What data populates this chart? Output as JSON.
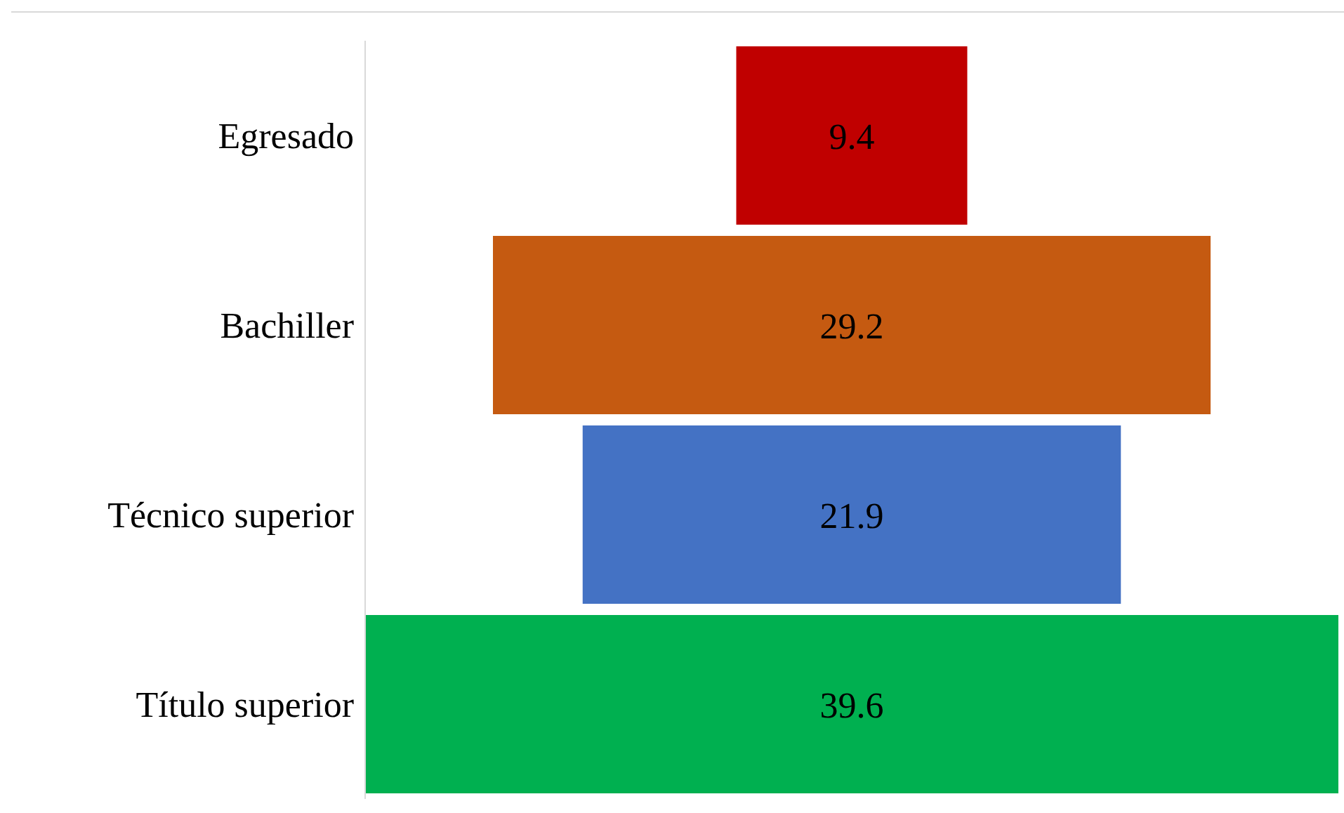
{
  "chart_data": {
    "type": "other",
    "categories": [
      "Egresado",
      "Bachiller",
      "Técnico superior",
      "Título superior"
    ],
    "values": [
      9.4,
      29.2,
      21.9,
      39.6
    ],
    "colors": [
      "#c00000",
      "#c55a11",
      "#4472c4",
      "#00b050"
    ],
    "data_labels": true
  }
}
